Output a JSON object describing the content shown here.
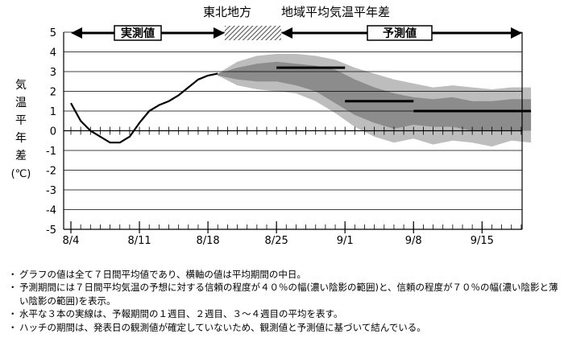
{
  "header": {
    "region": "東北地方",
    "title": "地域平均気温平年差"
  },
  "labels": {
    "observed": "実測値",
    "forecast": "予測値",
    "ylabel_chars": [
      "気",
      "温",
      "平",
      "年",
      "差"
    ],
    "yunit": "(℃)"
  },
  "chart_data": {
    "type": "line",
    "title": "東北地方　地域平均気温平年差",
    "ylabel": "気温平年差(℃)",
    "xlabel": "",
    "ylim": [
      -5,
      5
    ],
    "yticks": [
      5,
      4,
      3,
      2,
      1,
      0,
      -1,
      -2,
      -3,
      -4,
      -5
    ],
    "xticks": [
      "8/4",
      "8/11",
      "8/18",
      "8/25",
      "9/1",
      "9/8",
      "9/15"
    ],
    "x_start_day_offset": 0,
    "observed": {
      "x": [
        "8/4",
        "8/5",
        "8/6",
        "8/7",
        "8/8",
        "8/9",
        "8/10",
        "8/11",
        "8/12",
        "8/13",
        "8/14",
        "8/15",
        "8/16",
        "8/17",
        "8/18",
        "8/19"
      ],
      "y": [
        1.4,
        0.5,
        0.0,
        -0.3,
        -0.6,
        -0.6,
        -0.3,
        0.4,
        1.0,
        1.3,
        1.5,
        1.8,
        2.2,
        2.6,
        2.8,
        2.9
      ]
    },
    "band_70": {
      "x": [
        "8/19",
        "8/21",
        "8/23",
        "8/25",
        "8/27",
        "8/29",
        "8/31",
        "9/2",
        "9/4",
        "9/6",
        "9/8",
        "9/10",
        "9/12",
        "9/14",
        "9/16",
        "9/18",
        "9/20"
      ],
      "upper": [
        2.9,
        3.5,
        3.8,
        3.9,
        3.9,
        3.8,
        3.6,
        3.2,
        2.9,
        2.6,
        2.4,
        2.2,
        2.3,
        2.2,
        2.1,
        2.2,
        2.2
      ],
      "lower": [
        2.8,
        2.3,
        2.1,
        2.0,
        1.9,
        1.5,
        0.9,
        0.2,
        -0.3,
        -0.6,
        -0.4,
        -0.7,
        -0.5,
        -0.6,
        -0.8,
        -0.5,
        -0.6
      ]
    },
    "band_40": {
      "x": [
        "8/19",
        "8/21",
        "8/23",
        "8/25",
        "8/27",
        "8/29",
        "8/31",
        "9/2",
        "9/4",
        "9/6",
        "9/8",
        "9/10",
        "9/12",
        "9/14",
        "9/16",
        "9/18",
        "9/20"
      ],
      "upper": [
        2.9,
        3.2,
        3.4,
        3.5,
        3.4,
        3.3,
        3.1,
        2.6,
        2.2,
        1.9,
        1.7,
        1.6,
        1.7,
        1.5,
        1.5,
        1.6,
        1.6
      ],
      "lower": [
        2.8,
        2.6,
        2.5,
        2.5,
        2.3,
        2.0,
        1.4,
        0.8,
        0.4,
        0.1,
        0.3,
        0.2,
        0.2,
        0.0,
        0.0,
        0.0,
        0.0
      ]
    },
    "hatch_period": [
      "8/18",
      "8/25"
    ],
    "weekly_means": [
      {
        "label": "1週目",
        "x_from": "8/25",
        "x_to": "9/1",
        "y": 3.2
      },
      {
        "label": "2週目",
        "x_from": "9/1",
        "x_to": "9/8",
        "y": 1.5
      },
      {
        "label": "3～4週目",
        "x_from": "9/8",
        "x_to": "9/20",
        "y": 1.0
      }
    ],
    "grid": "horizontal"
  },
  "notes": [
    {
      "bullet": "・",
      "text": "グラフの値は全て７日間平均値であり、横軸の値は平均期間の中日。"
    },
    {
      "bullet": "・",
      "text": "予測期間には７日間平均気温の予想に対する信頼の程度が４０％の幅(濃い陰影の範囲)と、信頼の程度が７０％の幅(濃い陰影と薄い陰影の範囲)を表示。"
    },
    {
      "bullet": "・",
      "text": "水平な３本の実線は、予報期間の１週目、２週目、３～４週目の平均を表す。"
    },
    {
      "bullet": "・",
      "text": "ハッチの期間は、発表日の観測値が確定していないため、観測値と予測値に基づいて結んでいる。"
    }
  ],
  "colors": {
    "light_band": "#bdbdbd",
    "dark_band": "#8c8c8c",
    "line": "#000000",
    "grid": "#000000"
  }
}
